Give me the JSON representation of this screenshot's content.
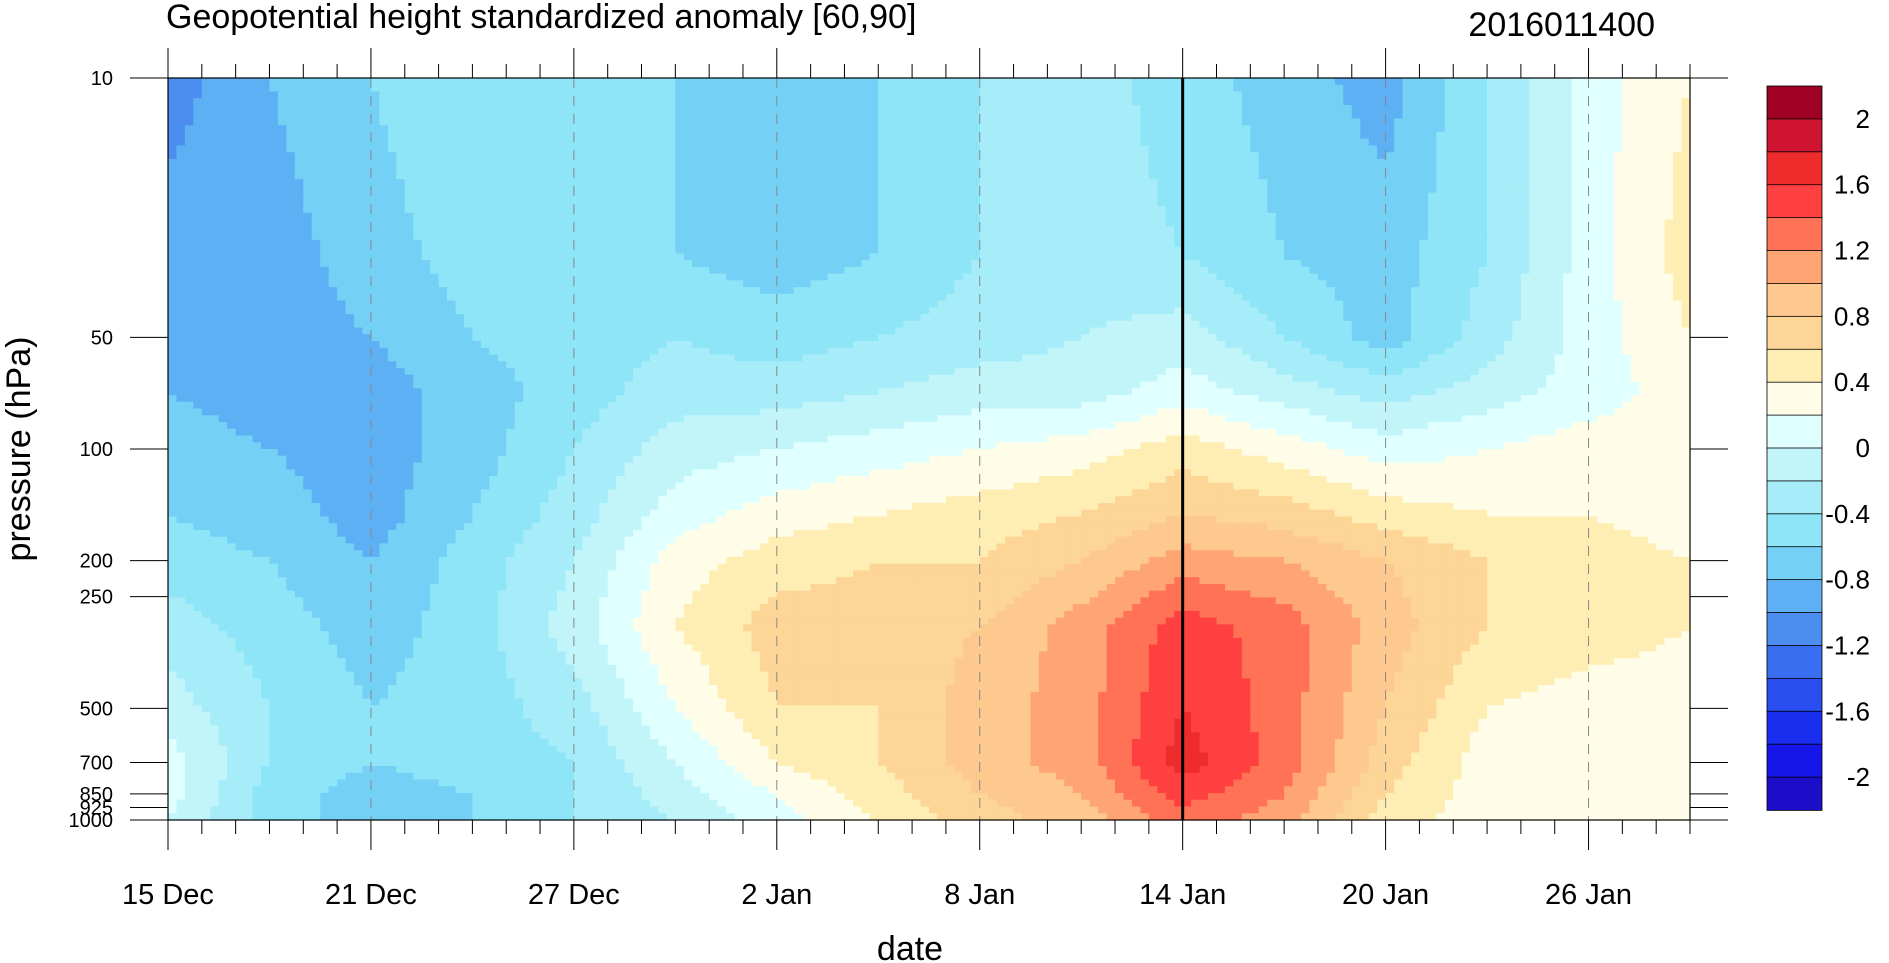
{
  "chart_data": {
    "type": "heatmap",
    "title": "Geopotential height standardized anomaly [60,90]",
    "right_title": "2016011400",
    "xlabel": "date",
    "ylabel": "pressure (hPa)",
    "x_range": [
      "15 Dec",
      "29 Jan"
    ],
    "x_tick_labels": [
      "15 Dec",
      "21 Dec",
      "27 Dec",
      "2 Jan",
      "8 Jan",
      "14 Jan",
      "20 Jan",
      "26 Jan"
    ],
    "y_tick_labels": [
      "10",
      "50",
      "100",
      "200",
      "250",
      "500",
      "700",
      "850",
      "925",
      "1000"
    ],
    "y_tick_values": [
      10,
      50,
      100,
      200,
      250,
      500,
      700,
      850,
      925,
      1000
    ],
    "ylim": [
      1000,
      10
    ],
    "y_scale": "log",
    "y_reversed": true,
    "marker_date": "14 Jan",
    "colorbar": {
      "levels": [
        -2.2,
        -2,
        -1.8,
        -1.6,
        -1.4,
        -1.2,
        -1,
        -0.8,
        -0.6,
        -0.4,
        -0.2,
        0,
        0.2,
        0.4,
        0.6,
        0.8,
        1,
        1.2,
        1.4,
        1.6,
        1.8,
        2,
        2.2
      ],
      "labels": [
        "2",
        "1.6",
        "1.2",
        "0.8",
        "0.4",
        "0",
        "-0.4",
        "-0.8",
        "-1.2",
        "-1.6",
        "-2"
      ],
      "colors": [
        "#9E0123",
        "#CE1430",
        "#EE2C2C",
        "#FF4040",
        "#FF7256",
        "#FFA574",
        "#FDC98E",
        "#FDD597",
        "#FFEEB4",
        "#FFFDE8",
        "#E0FFFF",
        "#C1F5FA",
        "#A6EDF9",
        "#8EE5F8",
        "#74D0F5",
        "#5EB0F5",
        "#4C8EF0",
        "#3A6EF0",
        "#2A4EF0",
        "#1A2EF0",
        "#1616E8",
        "#1B0DC8"
      ]
    },
    "grid": {
      "columns_date": [
        "15 Dec",
        "18 Dec",
        "21 Dec",
        "24 Dec",
        "27 Dec",
        "30 Dec",
        "2 Jan",
        "5 Jan",
        "8 Jan",
        "11 Jan",
        "14 Jan",
        "17 Jan",
        "20 Jan",
        "23 Jan",
        "26 Jan",
        "29 Jan"
      ],
      "rows_hPa": [
        10,
        30,
        50,
        70,
        100,
        150,
        200,
        300,
        500,
        700,
        850,
        1000
      ],
      "values": [
        [
          -1.1,
          -0.8,
          -0.6,
          -0.4,
          -0.5,
          -0.6,
          -0.8,
          -0.6,
          -0.4,
          -0.3,
          -0.5,
          -0.7,
          -0.9,
          -0.4,
          0.1,
          0.4
        ],
        [
          -0.9,
          -0.9,
          -0.7,
          -0.5,
          -0.5,
          -0.6,
          -0.7,
          -0.6,
          -0.4,
          -0.3,
          -0.4,
          -0.6,
          -0.7,
          -0.4,
          0.1,
          0.5
        ],
        [
          -0.9,
          -0.9,
          -0.8,
          -0.6,
          -0.5,
          -0.4,
          -0.5,
          -0.4,
          -0.3,
          -0.2,
          -0.1,
          -0.4,
          -0.7,
          -0.3,
          0.1,
          0.4
        ],
        [
          -0.8,
          -0.9,
          -0.9,
          -0.7,
          -0.5,
          -0.3,
          -0.3,
          -0.2,
          -0.1,
          -0.1,
          0.1,
          -0.1,
          -0.3,
          -0.1,
          0.1,
          0.3
        ],
        [
          -0.7,
          -0.8,
          -0.9,
          -0.7,
          -0.4,
          -0.1,
          0.0,
          0.1,
          0.2,
          0.3,
          0.5,
          0.3,
          0.1,
          0.2,
          0.3,
          0.3
        ],
        [
          -0.6,
          -0.7,
          -0.9,
          -0.6,
          -0.3,
          0.1,
          0.3,
          0.4,
          0.5,
          0.6,
          0.8,
          0.7,
          0.5,
          0.4,
          0.4,
          0.3
        ],
        [
          -0.5,
          -0.6,
          -0.8,
          -0.5,
          -0.2,
          0.3,
          0.5,
          0.6,
          0.6,
          0.8,
          1.1,
          1.0,
          0.8,
          0.6,
          0.5,
          0.4
        ],
        [
          -0.3,
          -0.5,
          -0.7,
          -0.5,
          -0.1,
          0.4,
          0.7,
          0.7,
          0.8,
          1.1,
          1.5,
          1.3,
          0.9,
          0.6,
          0.5,
          0.4
        ],
        [
          -0.1,
          -0.4,
          -0.6,
          -0.5,
          -0.3,
          0.2,
          0.6,
          0.6,
          0.9,
          1.1,
          1.6,
          1.3,
          0.8,
          0.4,
          0.3,
          0.3
        ],
        [
          0.1,
          -0.4,
          -0.6,
          -0.5,
          -0.4,
          0.0,
          0.4,
          0.6,
          0.9,
          1.1,
          1.7,
          1.3,
          0.7,
          0.3,
          0.3,
          0.3
        ],
        [
          0.1,
          -0.5,
          -0.7,
          -0.6,
          -0.4,
          -0.1,
          0.2,
          0.5,
          0.8,
          1.0,
          1.5,
          1.2,
          0.6,
          0.3,
          0.2,
          0.3
        ],
        [
          0.0,
          -0.5,
          -0.7,
          -0.6,
          -0.4,
          -0.2,
          0.1,
          0.4,
          0.7,
          0.9,
          1.3,
          1.1,
          0.5,
          0.3,
          0.2,
          0.3
        ]
      ]
    }
  }
}
